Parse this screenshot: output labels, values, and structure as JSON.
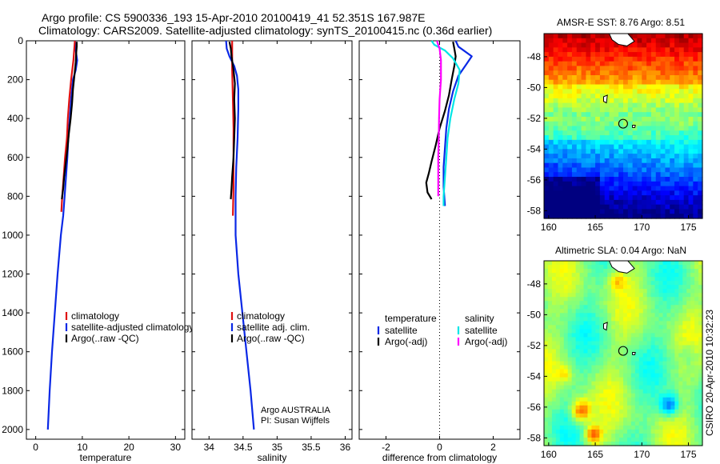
{
  "header": {
    "line1": "Argo profile: CS 5900336_193 15-Apr-2010 20100419_41 52.351S 167.987E",
    "line2": "Climatology: CARS2009. Satellite-adjusted climatology: synTS_20100415.nc (0.36d earlier)"
  },
  "side_label": "CSIRO 20-Apr-2010 10:32:23",
  "colors": {
    "climatology": "#e01010",
    "satellite": "#0a28e6",
    "argo": "#000000",
    "satellite_sal": "#00e6e6",
    "argo_sal": "#ff00ff"
  },
  "chart_data": [
    {
      "type": "line",
      "xlabel": "temperature",
      "ylim": [
        2050,
        0
      ],
      "yticks": [
        0,
        200,
        400,
        600,
        800,
        1000,
        1200,
        1400,
        1600,
        1800,
        2000
      ],
      "xlim": [
        -2,
        32
      ],
      "xticks": [
        0,
        10,
        20,
        30
      ],
      "legend": {
        "placement": "lower-middle",
        "entries": [
          "climatology",
          "satellite-adjusted climatology",
          "Argo(..raw -QC)"
        ]
      },
      "series": [
        {
          "name": "satellite-adjusted climatology",
          "color": "#0a28e6",
          "points": [
            [
              8.4,
              0
            ],
            [
              8.6,
              50
            ],
            [
              8.9,
              100
            ],
            [
              8.6,
              150
            ],
            [
              8.0,
              200
            ],
            [
              7.6,
              300
            ],
            [
              7.3,
              400
            ],
            [
              7.0,
              500
            ],
            [
              6.8,
              600
            ],
            [
              6.5,
              700
            ],
            [
              6.2,
              800
            ],
            [
              5.9,
              900
            ],
            [
              5.4,
              1000
            ],
            [
              4.7,
              1200
            ],
            [
              4.1,
              1400
            ],
            [
              3.5,
              1600
            ],
            [
              3.0,
              1800
            ],
            [
              2.6,
              2000
            ]
          ]
        },
        {
          "name": "climatology",
          "color": "#e01010",
          "points": [
            [
              8.4,
              0
            ],
            [
              8.1,
              100
            ],
            [
              7.6,
              200
            ],
            [
              7.2,
              300
            ],
            [
              6.9,
              400
            ],
            [
              6.7,
              500
            ],
            [
              6.3,
              600
            ],
            [
              6.0,
              700
            ],
            [
              5.7,
              800
            ],
            [
              5.5,
              880
            ]
          ]
        },
        {
          "name": "Argo(..raw -QC)",
          "color": "#000000",
          "points": [
            [
              8.8,
              5
            ],
            [
              8.8,
              30
            ],
            [
              8.7,
              60
            ],
            [
              8.6,
              110
            ],
            [
              8.3,
              180
            ],
            [
              8.0,
              250
            ],
            [
              7.8,
              320
            ],
            [
              7.5,
              400
            ],
            [
              7.1,
              480
            ],
            [
              6.8,
              560
            ],
            [
              6.4,
              640
            ],
            [
              6.1,
              700
            ],
            [
              5.9,
              760
            ],
            [
              5.6,
              815
            ]
          ]
        }
      ]
    },
    {
      "type": "line",
      "xlabel": "salinity",
      "ylim": [
        2050,
        0
      ],
      "xlim": [
        33.75,
        36.1
      ],
      "xticks": [
        34,
        34.5,
        35,
        35.5,
        36
      ],
      "legend": {
        "placement": "lower-middle",
        "entries": [
          "climatology",
          "satellite adj. clim.",
          "Argo(..raw -QC)"
        ]
      },
      "annotation": [
        "Argo AUSTRALIA",
        "PI: Susan Wijffels"
      ],
      "series": [
        {
          "name": "satellite adj. clim.",
          "color": "#0a28e6",
          "points": [
            [
              34.25,
              0
            ],
            [
              34.26,
              40
            ],
            [
              34.3,
              80
            ],
            [
              34.37,
              130
            ],
            [
              34.41,
              180
            ],
            [
              34.43,
              250
            ],
            [
              34.43,
              350
            ],
            [
              34.42,
              500
            ],
            [
              34.4,
              650
            ],
            [
              34.39,
              800
            ],
            [
              34.39,
              900
            ],
            [
              34.39,
              1000
            ],
            [
              34.43,
              1200
            ],
            [
              34.49,
              1400
            ],
            [
              34.55,
              1600
            ],
            [
              34.61,
              1800
            ],
            [
              34.66,
              2000
            ]
          ]
        },
        {
          "name": "climatology",
          "color": "#e01010",
          "points": [
            [
              34.34,
              0
            ],
            [
              34.34,
              150
            ],
            [
              34.35,
              300
            ],
            [
              34.36,
              450
            ],
            [
              34.36,
              600
            ],
            [
              34.36,
              750
            ],
            [
              34.35,
              900
            ]
          ]
        },
        {
          "name": "Argo(..raw -QC)",
          "color": "#000000",
          "points": [
            [
              34.3,
              5
            ],
            [
              34.32,
              40
            ],
            [
              34.33,
              80
            ],
            [
              34.36,
              150
            ],
            [
              34.38,
              220
            ],
            [
              34.37,
              300
            ],
            [
              34.38,
              400
            ],
            [
              34.37,
              500
            ],
            [
              34.36,
              600
            ],
            [
              34.34,
              700
            ],
            [
              34.33,
              760
            ],
            [
              34.32,
              815
            ]
          ]
        }
      ]
    },
    {
      "type": "line",
      "xlabel": "difference from climatology",
      "ylim": [
        2050,
        0
      ],
      "xlim": [
        -3,
        3
      ],
      "xticks": [
        -2,
        0,
        2
      ],
      "zero_line": true,
      "legend": {
        "placement": "lower-middle",
        "columns": [
          {
            "header": "temperature",
            "entries": [
              "satellite",
              "Argo(-adj)"
            ]
          },
          {
            "header": "salinity",
            "entries": [
              "satellite",
              "Argo(-adj)"
            ]
          }
        ]
      },
      "series": [
        {
          "name": "satellite",
          "group": "temperature",
          "color": "#0a28e6",
          "points": [
            [
              0.6,
              0
            ],
            [
              0.7,
              30
            ],
            [
              1.2,
              80
            ],
            [
              1.0,
              120
            ],
            [
              0.7,
              180
            ],
            [
              0.5,
              260
            ],
            [
              0.35,
              350
            ],
            [
              0.25,
              450
            ],
            [
              0.2,
              550
            ],
            [
              0.15,
              650
            ],
            [
              0.15,
              750
            ],
            [
              0.2,
              850
            ]
          ]
        },
        {
          "name": "Argo(-adj)",
          "group": "temperature",
          "color": "#000000",
          "points": [
            [
              0.5,
              5
            ],
            [
              0.55,
              40
            ],
            [
              0.6,
              80
            ],
            [
              0.55,
              130
            ],
            [
              0.45,
              200
            ],
            [
              0.35,
              280
            ],
            [
              0.2,
              360
            ],
            [
              0.0,
              450
            ],
            [
              -0.15,
              540
            ],
            [
              -0.3,
              620
            ],
            [
              -0.4,
              680
            ],
            [
              -0.5,
              730
            ],
            [
              -0.45,
              780
            ],
            [
              -0.3,
              815
            ]
          ]
        },
        {
          "name": "satellite",
          "group": "salinity",
          "color": "#00e6e6",
          "points": [
            [
              -0.3,
              0
            ],
            [
              -0.2,
              20
            ],
            [
              0.2,
              50
            ],
            [
              0.5,
              90
            ],
            [
              0.75,
              150
            ],
            [
              0.7,
              220
            ],
            [
              0.55,
              300
            ],
            [
              0.4,
              400
            ],
            [
              0.3,
              500
            ],
            [
              0.25,
              600
            ],
            [
              0.2,
              700
            ],
            [
              0.15,
              800
            ],
            [
              0.15,
              850
            ]
          ]
        },
        {
          "name": "Argo(-adj)",
          "group": "salinity",
          "color": "#ff00ff",
          "points": [
            [
              -0.1,
              0
            ],
            [
              0.0,
              40
            ],
            [
              0.05,
              100
            ],
            [
              0.05,
              200
            ],
            [
              0.0,
              300
            ],
            [
              -0.02,
              400
            ],
            [
              -0.03,
              500
            ],
            [
              -0.05,
              600
            ],
            [
              -0.05,
              700
            ],
            [
              -0.05,
              800
            ]
          ]
        }
      ]
    },
    {
      "type": "heatmap",
      "title": "AMSR-E SST: 8.76 Argo: 8.51",
      "xlim": [
        159.5,
        176.5
      ],
      "xticks": [
        160,
        165,
        170,
        175
      ],
      "ylim": [
        -58.5,
        -46.5
      ],
      "yticks": [
        -48,
        -50,
        -52,
        -54,
        -56,
        -58
      ],
      "colormap": "jet",
      "marker": {
        "lon": 167.99,
        "lat": -52.35
      }
    },
    {
      "type": "heatmap",
      "title": "Altimetric SLA: 0.04 Argo: NaN",
      "xlim": [
        159.5,
        176.5
      ],
      "xticks": [
        160,
        165,
        170,
        175
      ],
      "ylim": [
        -58.5,
        -46.5
      ],
      "yticks": [
        -48,
        -50,
        -52,
        -54,
        -56,
        -58
      ],
      "colormap": "jet",
      "marker": {
        "lon": 167.99,
        "lat": -52.35
      }
    }
  ]
}
